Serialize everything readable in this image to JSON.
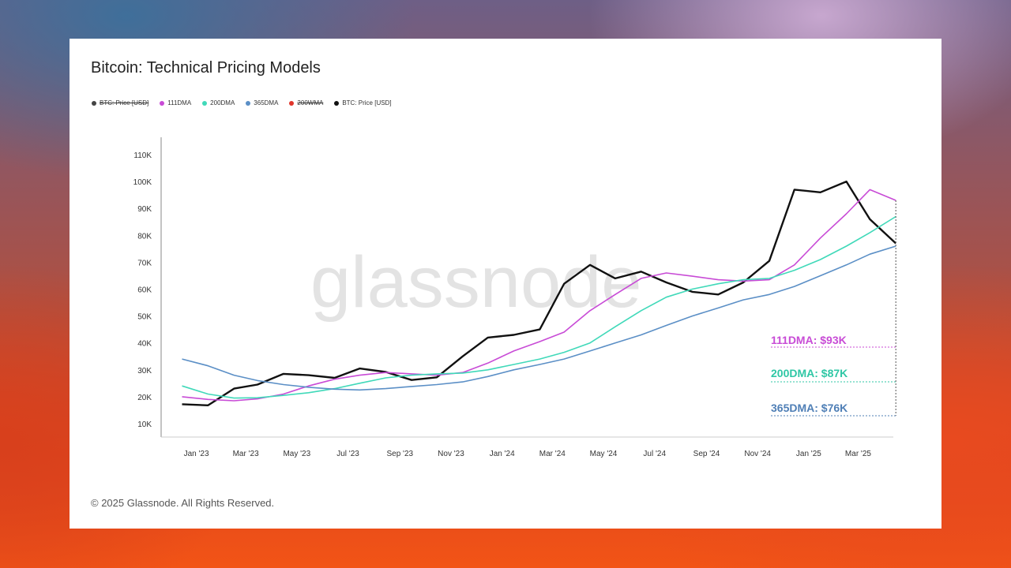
{
  "title": "Bitcoin: Technical Pricing Models",
  "footer": "© 2025 Glassnode. All Rights Reserved.",
  "watermark": "glassnode",
  "legend": [
    {
      "label": "BTC: Price [USD]",
      "color": "#444444",
      "struck": true
    },
    {
      "label": "111DMA",
      "color": "#c84bd6",
      "struck": false
    },
    {
      "label": "200DMA",
      "color": "#40d9b9",
      "struck": false
    },
    {
      "label": "365DMA",
      "color": "#5b8fc6",
      "struck": false
    },
    {
      "label": "200WMA",
      "color": "#e0352b",
      "struck": true
    },
    {
      "label": "BTC: Price [USD]",
      "color": "#111111",
      "struck": false
    }
  ],
  "annotations": {
    "dma111": "111DMA: $93K",
    "dma200": "200DMA: $87K",
    "dma365": "365DMA: $76K"
  },
  "chart_data": {
    "type": "line",
    "x": [
      "2022-12",
      "2023-01",
      "2023-02",
      "2023-03",
      "2023-04",
      "2023-05",
      "2023-06",
      "2023-07",
      "2023-08",
      "2023-09",
      "2023-10",
      "2023-11",
      "2023-12",
      "2024-01",
      "2024-02",
      "2024-03",
      "2024-04",
      "2024-05",
      "2024-06",
      "2024-07",
      "2024-08",
      "2024-09",
      "2024-10",
      "2024-11",
      "2024-12",
      "2025-01",
      "2025-02",
      "2025-03",
      "2025-04"
    ],
    "xlim": [
      "2022-11-20",
      "2025-04-12"
    ],
    "ylim": [
      5000,
      115000
    ],
    "y_ticks": [
      10000,
      20000,
      30000,
      40000,
      50000,
      60000,
      70000,
      80000,
      90000,
      100000,
      110000
    ],
    "y_tick_labels": [
      "10K",
      "20K",
      "30K",
      "40K",
      "50K",
      "60K",
      "70K",
      "80K",
      "90K",
      "100K",
      "110K"
    ],
    "x_ticks": [
      "2023-01-01",
      "2023-03-01",
      "2023-05-01",
      "2023-07-01",
      "2023-09-01",
      "2023-11-01",
      "2024-01-01",
      "2024-03-01",
      "2024-05-01",
      "2024-07-01",
      "2024-09-01",
      "2024-11-01",
      "2025-01-01",
      "2025-03-01"
    ],
    "x_tick_labels": [
      "Jan '23",
      "Mar '23",
      "May '23",
      "Jul '23",
      "Sep '23",
      "Nov '23",
      "Jan '24",
      "Mar '24",
      "May '24",
      "Jul '24",
      "Sep '24",
      "Nov '24",
      "Jan '25",
      "Mar '25"
    ],
    "series": [
      {
        "name": "BTC: Price [USD]",
        "color": "#111111",
        "values": [
          17200,
          16800,
          23000,
          24500,
          28500,
          28000,
          27000,
          30500,
          29200,
          26200,
          27200,
          35000,
          42000,
          43000,
          45000,
          62000,
          69000,
          64000,
          66500,
          62500,
          59000,
          58000,
          62500,
          70500,
          97000,
          96000,
          100000,
          86000,
          77000
        ]
      },
      {
        "name": "111DMA",
        "color": "#c84bd6",
        "values": [
          20000,
          19000,
          18500,
          19200,
          21000,
          24000,
          26500,
          28000,
          29000,
          28500,
          28000,
          29000,
          32500,
          37000,
          40500,
          44000,
          52000,
          58000,
          64000,
          66000,
          64800,
          63500,
          63000,
          63500,
          69000,
          79000,
          88000,
          97000,
          93000
        ]
      },
      {
        "name": "200DMA",
        "color": "#40d9b9",
        "values": [
          24000,
          21000,
          19500,
          19600,
          20500,
          21500,
          23000,
          25000,
          27000,
          28000,
          28500,
          28800,
          30000,
          32000,
          34000,
          36500,
          40000,
          46000,
          52000,
          57000,
          60000,
          62000,
          63500,
          64000,
          67000,
          71000,
          76000,
          81000,
          87000
        ]
      },
      {
        "name": "365DMA",
        "color": "#5b8fc6",
        "values": [
          34000,
          31500,
          28000,
          26000,
          24500,
          23500,
          22800,
          22500,
          23000,
          23800,
          24500,
          25500,
          27500,
          30000,
          32000,
          34000,
          37000,
          40000,
          43000,
          46500,
          50000,
          53000,
          56000,
          58000,
          61000,
          65000,
          69000,
          73000,
          76000
        ]
      }
    ]
  }
}
